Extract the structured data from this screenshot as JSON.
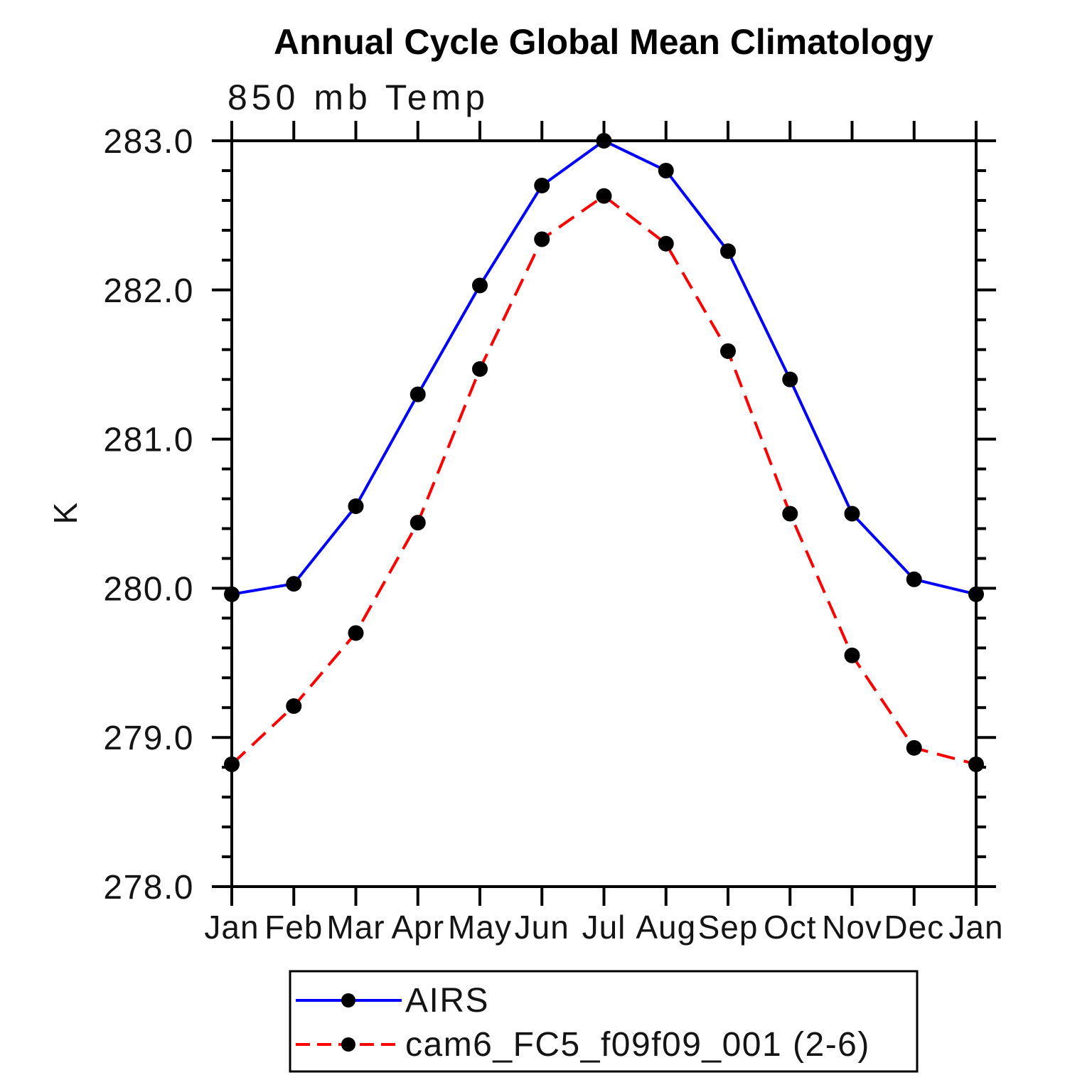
{
  "title": "Annual Cycle Global Mean Climatology",
  "subtitle": "850 mb Temp",
  "colors": {
    "axis": "#000000",
    "airs_line": "#0000ff",
    "cam6_line": "#ff0000",
    "marker": "#000000"
  },
  "chart_data": {
    "type": "line",
    "title": "Annual Cycle Global Mean Climatology",
    "subtitle": "850 mb Temp",
    "ylabel": "K",
    "x_tick_labels": [
      "Jan",
      "Feb",
      "Mar",
      "Apr",
      "May",
      "Jun",
      "Jul",
      "Aug",
      "Sep",
      "Oct",
      "Nov",
      "Dec",
      "Jan"
    ],
    "y_tick_labels": [
      "278.0",
      "279.0",
      "280.0",
      "281.0",
      "282.0",
      "283.0"
    ],
    "ylim": [
      278.0,
      283.0
    ],
    "y_minor_tick_step": 0.2,
    "grid": false,
    "legend_position": "bottom",
    "marker": {
      "shape": "filled-circle",
      "color": "#000000"
    },
    "series": [
      {
        "name": "AIRS",
        "color": "#0000ff",
        "line_style": "solid",
        "values": [
          279.96,
          280.03,
          280.55,
          281.3,
          282.03,
          282.7,
          283.0,
          282.8,
          282.26,
          281.4,
          280.5,
          280.06,
          279.96
        ]
      },
      {
        "name": "cam6_FC5_f09f09_001 (2-6)",
        "color": "#ff0000",
        "line_style": "dashed",
        "values": [
          278.82,
          279.21,
          279.7,
          280.44,
          281.47,
          282.34,
          282.63,
          282.31,
          281.59,
          280.5,
          279.55,
          278.93,
          278.82
        ]
      }
    ]
  }
}
